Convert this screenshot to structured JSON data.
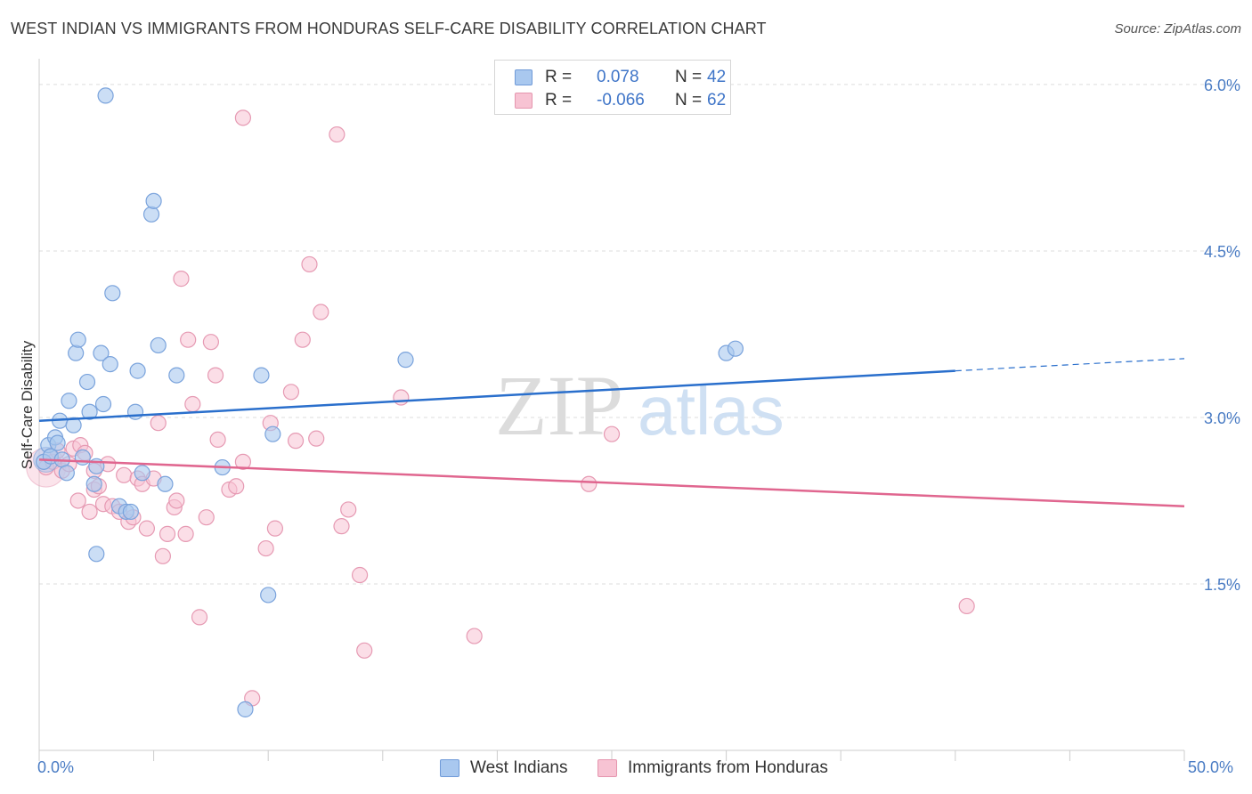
{
  "header": {
    "title": "WEST INDIAN VS IMMIGRANTS FROM HONDURAS SELF-CARE DISABILITY CORRELATION CHART",
    "source": "Source: ZipAtlas.com"
  },
  "watermark": {
    "zip": "ZIP",
    "atlas": "atlas"
  },
  "legend": {
    "rows": [
      {
        "r_label": "R =",
        "r_value": "0.078",
        "n_label": "N =",
        "n_value": "42",
        "color": "#a9c8ef",
        "border": "#6f9ad8"
      },
      {
        "r_label": "R =",
        "r_value": "-0.066",
        "n_label": "N =",
        "n_value": "62",
        "color": "#f7c3d3",
        "border": "#e595ae"
      }
    ]
  },
  "bottom_legend": [
    {
      "label": "West Indians"
    },
    {
      "label": "Immigrants from Honduras"
    }
  ],
  "colors": {
    "blue_fill": "#a9c8ef",
    "blue_stroke": "#7aa3dc",
    "blue_line": "#2a6fcc",
    "pink_fill": "#f7c3d3",
    "pink_stroke": "#e69ab3",
    "pink_line": "#e0668f",
    "tick_text": "#4a7cc4",
    "grid": "#dddddd"
  },
  "chart_data": {
    "type": "scatter",
    "title": "WEST INDIAN VS IMMIGRANTS FROM HONDURAS SELF-CARE DISABILITY CORRELATION CHART",
    "xlabel": "",
    "ylabel": "Self-Care Disability",
    "xlim": [
      0,
      50
    ],
    "ylim": [
      0,
      6.2
    ],
    "x_tick_labels": [
      "0.0%",
      "50.0%"
    ],
    "y_ticks": [
      1.5,
      3.0,
      4.5,
      6.0
    ],
    "y_tick_labels": [
      "1.5%",
      "3.0%",
      "4.5%",
      "6.0%"
    ],
    "grid": true,
    "series": [
      {
        "name": "West Indians",
        "trend": {
          "x0": 0,
          "y0": 2.97,
          "x1": 40,
          "y1": 3.42,
          "dashed_to_x": 50,
          "dashed_to_y": 3.53
        },
        "points": [
          [
            0.2,
            2.6
          ],
          [
            0.4,
            2.75
          ],
          [
            0.5,
            2.65
          ],
          [
            0.7,
            2.82
          ],
          [
            0.8,
            2.77
          ],
          [
            0.9,
            2.97
          ],
          [
            1.0,
            2.62
          ],
          [
            1.2,
            2.5
          ],
          [
            1.3,
            3.15
          ],
          [
            1.5,
            2.93
          ],
          [
            1.6,
            3.58
          ],
          [
            1.7,
            3.7
          ],
          [
            1.9,
            2.64
          ],
          [
            2.1,
            3.32
          ],
          [
            2.2,
            3.05
          ],
          [
            2.4,
            2.4
          ],
          [
            2.5,
            2.56
          ],
          [
            2.7,
            3.58
          ],
          [
            2.8,
            3.12
          ],
          [
            2.9,
            5.9
          ],
          [
            3.1,
            3.48
          ],
          [
            3.2,
            4.12
          ],
          [
            3.5,
            2.2
          ],
          [
            3.8,
            2.15
          ],
          [
            4.0,
            2.15
          ],
          [
            4.2,
            3.05
          ],
          [
            4.3,
            3.42
          ],
          [
            4.5,
            2.5
          ],
          [
            4.9,
            4.83
          ],
          [
            5.0,
            4.95
          ],
          [
            5.2,
            3.65
          ],
          [
            5.5,
            2.4
          ],
          [
            6.0,
            3.38
          ],
          [
            8.0,
            2.55
          ],
          [
            9.0,
            0.37
          ],
          [
            9.7,
            3.38
          ],
          [
            10.0,
            1.4
          ],
          [
            10.2,
            2.85
          ],
          [
            16.0,
            3.52
          ],
          [
            30.0,
            3.58
          ],
          [
            30.4,
            3.62
          ],
          [
            2.5,
            1.77
          ]
        ]
      },
      {
        "name": "Immigrants from Honduras",
        "trend": {
          "x0": 0,
          "y0": 2.62,
          "x1": 50,
          "y1": 2.2
        },
        "points": [
          [
            0.3,
            2.55
          ],
          [
            0.6,
            2.6
          ],
          [
            0.8,
            2.7
          ],
          [
            1.0,
            2.52
          ],
          [
            1.3,
            2.58
          ],
          [
            1.5,
            2.72
          ],
          [
            1.7,
            2.25
          ],
          [
            1.8,
            2.75
          ],
          [
            2.0,
            2.68
          ],
          [
            2.2,
            2.15
          ],
          [
            2.4,
            2.35
          ],
          [
            2.6,
            2.38
          ],
          [
            2.8,
            2.22
          ],
          [
            3.0,
            2.58
          ],
          [
            3.2,
            2.2
          ],
          [
            3.5,
            2.15
          ],
          [
            3.7,
            2.48
          ],
          [
            3.9,
            2.06
          ],
          [
            4.1,
            2.1
          ],
          [
            4.3,
            2.45
          ],
          [
            4.5,
            2.4
          ],
          [
            4.7,
            2.0
          ],
          [
            5.0,
            2.45
          ],
          [
            5.2,
            2.95
          ],
          [
            5.4,
            1.75
          ],
          [
            5.6,
            1.95
          ],
          [
            5.9,
            2.19
          ],
          [
            6.0,
            2.25
          ],
          [
            6.2,
            4.25
          ],
          [
            6.4,
            1.95
          ],
          [
            6.5,
            3.7
          ],
          [
            6.7,
            3.12
          ],
          [
            7.0,
            1.2
          ],
          [
            7.3,
            2.1
          ],
          [
            7.5,
            3.68
          ],
          [
            7.7,
            3.38
          ],
          [
            7.8,
            2.8
          ],
          [
            8.3,
            2.35
          ],
          [
            8.6,
            2.38
          ],
          [
            8.9,
            2.6
          ],
          [
            8.9,
            5.7
          ],
          [
            9.3,
            0.47
          ],
          [
            9.9,
            1.82
          ],
          [
            10.1,
            2.95
          ],
          [
            10.3,
            2.0
          ],
          [
            11.0,
            3.23
          ],
          [
            11.2,
            2.79
          ],
          [
            11.5,
            3.7
          ],
          [
            11.8,
            4.38
          ],
          [
            12.1,
            2.81
          ],
          [
            12.3,
            3.95
          ],
          [
            13.0,
            5.55
          ],
          [
            13.2,
            2.02
          ],
          [
            13.5,
            2.17
          ],
          [
            14.0,
            1.58
          ],
          [
            14.2,
            0.9
          ],
          [
            15.8,
            3.18
          ],
          [
            19.0,
            1.03
          ],
          [
            24.0,
            2.4
          ],
          [
            25.0,
            2.85
          ],
          [
            40.5,
            1.3
          ],
          [
            2.4,
            2.52
          ]
        ]
      }
    ]
  }
}
